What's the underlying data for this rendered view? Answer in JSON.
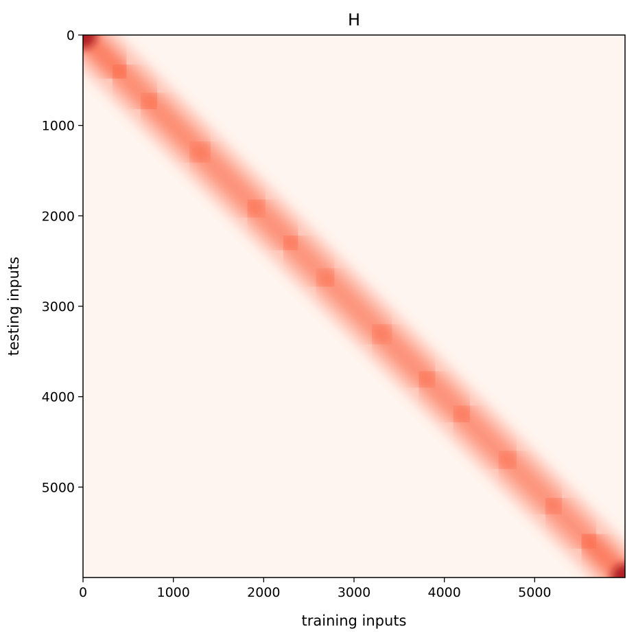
{
  "chart_data": {
    "type": "heatmap",
    "title": "H",
    "xlabel": "training inputs",
    "ylabel": "testing inputs",
    "xlim": [
      0,
      6000
    ],
    "ylim": [
      6000,
      0
    ],
    "y_inverted": true,
    "xticks": [
      0,
      1000,
      2000,
      3000,
      4000,
      5000
    ],
    "yticks": [
      0,
      1000,
      2000,
      3000,
      4000,
      5000
    ],
    "xtick_labels": [
      "0",
      "1000",
      "2000",
      "3000",
      "4000",
      "5000"
    ],
    "ytick_labels": [
      "0",
      "1000",
      "2000",
      "3000",
      "4000",
      "5000"
    ],
    "colormap": "Reds",
    "background_color": "#fff5f0",
    "band_color": "#fb6a4a",
    "peak_color": "#a50f15",
    "grid": false,
    "legend": "none",
    "diagonal_band": [
      {
        "x": 0,
        "y": 0,
        "intensity": 0.95
      },
      {
        "x": 400,
        "y": 400,
        "intensity": 0.55
      },
      {
        "x": 750,
        "y": 750,
        "intensity": 0.65
      },
      {
        "x": 1300,
        "y": 1300,
        "intensity": 0.55
      },
      {
        "x": 1900,
        "y": 1900,
        "intensity": 0.6
      },
      {
        "x": 2300,
        "y": 2300,
        "intensity": 0.55
      },
      {
        "x": 2700,
        "y": 2700,
        "intensity": 0.5
      },
      {
        "x": 3300,
        "y": 3300,
        "intensity": 0.55
      },
      {
        "x": 3800,
        "y": 3800,
        "intensity": 0.6
      },
      {
        "x": 4200,
        "y": 4200,
        "intensity": 0.55
      },
      {
        "x": 4700,
        "y": 4700,
        "intensity": 0.55
      },
      {
        "x": 5200,
        "y": 5200,
        "intensity": 0.5
      },
      {
        "x": 5600,
        "y": 5600,
        "intensity": 0.6
      },
      {
        "x": 6000,
        "y": 6000,
        "intensity": 0.98
      }
    ]
  }
}
